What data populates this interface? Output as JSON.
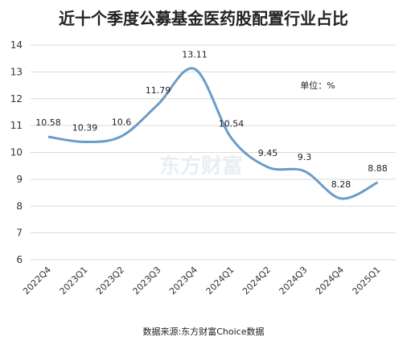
{
  "chart_data": {
    "type": "line",
    "title": "近十个季度公募基金医药股配置行业占比",
    "unit_label": "单位：%",
    "source": "数据来源:东方财富Choice数据",
    "watermark": "东方财富",
    "categories": [
      "2022Q4",
      "2023Q1",
      "2023Q2",
      "2023Q3",
      "2023Q4",
      "2024Q1",
      "2024Q2",
      "2024Q3",
      "2024Q4",
      "2025Q1"
    ],
    "values": [
      10.58,
      10.39,
      10.6,
      11.79,
      13.11,
      10.54,
      9.45,
      9.3,
      8.28,
      8.88
    ],
    "value_labels": [
      "10.58",
      "10.39",
      "10.6",
      "11.79",
      "13.11",
      "10.54",
      "9.45",
      "9.3",
      "8.28",
      "8.88"
    ],
    "ylim": [
      6,
      14
    ],
    "yticks": [
      6,
      7,
      8,
      9,
      10,
      11,
      12,
      13,
      14
    ],
    "grid": "horizontal",
    "line_color": "#6a9cc9",
    "smooth": true
  }
}
